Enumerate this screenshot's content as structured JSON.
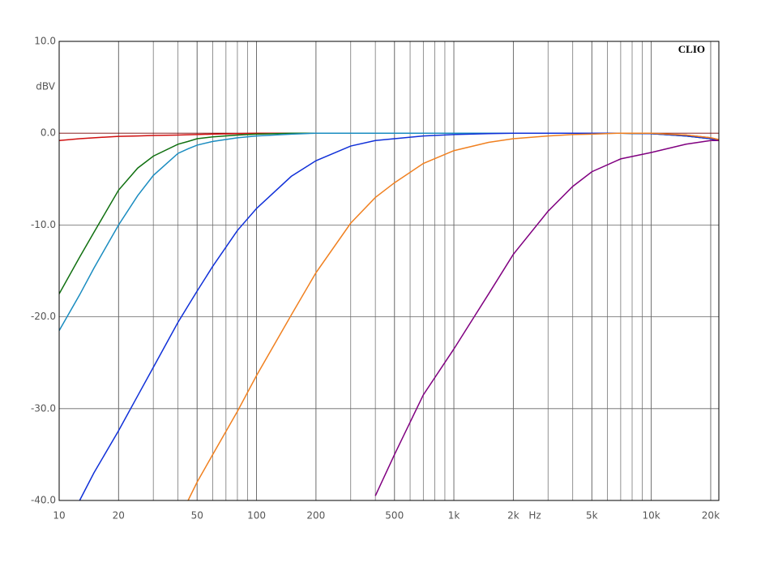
{
  "chart_data": {
    "type": "line",
    "brand": "CLIO",
    "y_label": "dBV",
    "x_label": "Hz",
    "log_x": true,
    "grid": true,
    "xlim": [
      10,
      22000
    ],
    "ylim": [
      -40,
      10
    ],
    "xticks": [
      10,
      20,
      50,
      100,
      200,
      500,
      {
        "value": 1000,
        "label": "1k"
      },
      {
        "value": 2000,
        "label": "2k"
      },
      {
        "value": 5000,
        "label": "5k"
      },
      {
        "value": 10000,
        "label": "10k"
      },
      {
        "value": 20000,
        "label": "20k"
      }
    ],
    "yticks": [
      {
        "value": 10,
        "label": "10.0"
      },
      {
        "value": 0,
        "label": "0.0"
      },
      {
        "value": -10,
        "label": "-10.0"
      },
      {
        "value": -20,
        "label": "-20.0"
      },
      {
        "value": -30,
        "label": "-30.0"
      },
      {
        "value": -40,
        "label": "-40.0"
      }
    ],
    "x": [
      10,
      12.7,
      15,
      20,
      25,
      30,
      40,
      45,
      50,
      60,
      80,
      100,
      150,
      200,
      300,
      400,
      500,
      700,
      1000,
      1500,
      2000,
      3000,
      4000,
      5000,
      7000,
      10000,
      15000,
      20000,
      22000
    ],
    "series": [
      {
        "color": "#d01010",
        "values": [
          -0.8,
          -0.6,
          -0.5,
          -0.35,
          -0.3,
          -0.25,
          -0.2,
          -0.17,
          -0.15,
          -0.1,
          -0.05,
          0,
          0,
          0,
          0,
          0,
          0,
          0,
          0,
          0,
          0,
          0,
          0,
          0,
          0,
          -0.05,
          -0.2,
          -0.5,
          -0.7
        ]
      },
      {
        "color": "#107010",
        "values": [
          -17.5,
          -13.5,
          -10.8,
          -6.2,
          -3.8,
          -2.5,
          -1.2,
          -0.9,
          -0.6,
          -0.4,
          -0.2,
          -0.1,
          0,
          0,
          0,
          0,
          0,
          0,
          0,
          0,
          0,
          0,
          0,
          0,
          0,
          -0.05,
          -0.3,
          -0.6,
          -0.8
        ]
      },
      {
        "color": "#1a8cc0",
        "values": [
          -21.5,
          -17.6,
          -14.7,
          -10,
          -6.8,
          -4.6,
          -2.2,
          -1.7,
          -1.3,
          -0.9,
          -0.5,
          -0.3,
          -0.1,
          0,
          0,
          0,
          0,
          0,
          0,
          0,
          0,
          0,
          0,
          0,
          0,
          -0.05,
          -0.3,
          -0.6,
          -0.8
        ]
      },
      {
        "color": "#1030d8",
        "values": [
          null,
          -40,
          -37,
          -32.4,
          -28.6,
          -25.5,
          -20.6,
          -18.8,
          -17.2,
          -14.5,
          -10.6,
          -8.2,
          -4.7,
          -3,
          -1.4,
          -0.8,
          -0.6,
          -0.3,
          -0.15,
          -0.05,
          0,
          0,
          0,
          0,
          0,
          -0.05,
          -0.3,
          -0.6,
          -0.8
        ]
      },
      {
        "color": "#f08020",
        "values": [
          null,
          null,
          null,
          null,
          null,
          null,
          null,
          -40,
          -38,
          -35,
          -30.3,
          -26.4,
          -19.8,
          -15.2,
          -9.8,
          -7,
          -5.4,
          -3.3,
          -1.9,
          -1,
          -0.6,
          -0.3,
          -0.15,
          -0.1,
          0,
          0,
          -0.2,
          -0.5,
          -0.7
        ]
      },
      {
        "color": "#800080",
        "values": [
          null,
          null,
          null,
          null,
          null,
          null,
          null,
          null,
          null,
          null,
          null,
          null,
          null,
          null,
          null,
          -39.5,
          -35,
          -28.5,
          -23.5,
          -17.5,
          -13.2,
          -8.5,
          -5.8,
          -4.2,
          -2.8,
          -2.1,
          -1.2,
          -0.8,
          -0.8
        ]
      }
    ]
  }
}
